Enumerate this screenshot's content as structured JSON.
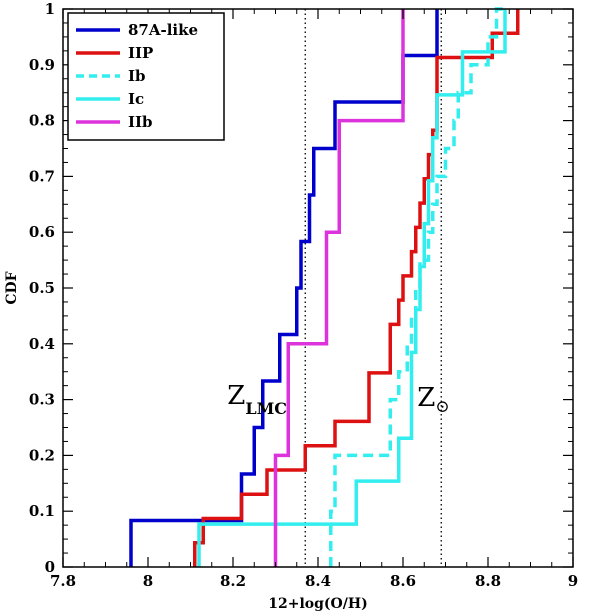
{
  "chart_data": {
    "type": "line",
    "subtype": "step-cdf",
    "xlabel": "12+log(O/H)",
    "ylabel": "CDF",
    "xlim": [
      7.8,
      9.0
    ],
    "ylim": [
      0,
      1
    ],
    "x_ticks": [
      7.8,
      8.0,
      8.2,
      8.4,
      8.6,
      8.8,
      9.0
    ],
    "x_tick_labels": [
      "7.8",
      "8",
      "8.2",
      "8.4",
      "8.6",
      "8.8",
      "9"
    ],
    "y_ticks": [
      0,
      0.1,
      0.2,
      0.3,
      0.4,
      0.5,
      0.6,
      0.7,
      0.8,
      0.9,
      1
    ],
    "y_tick_labels": [
      "0",
      "0.1",
      "0.2",
      "0.3",
      "0.4",
      "0.5",
      "0.6",
      "0.7",
      "0.8",
      "0.9",
      "1"
    ],
    "grid": false,
    "legend_position": "top-left",
    "series": [
      {
        "name": "87A-like",
        "color": "#0000cc",
        "dash": "solid",
        "x": [
          7.96,
          8.22,
          8.25,
          8.27,
          8.31,
          8.35,
          8.36,
          8.38,
          8.39,
          8.44,
          8.6,
          8.68
        ],
        "y": [
          0.0833,
          0.1667,
          0.25,
          0.3333,
          0.4167,
          0.5,
          0.5833,
          0.6667,
          0.75,
          0.8333,
          0.9167,
          1.0
        ]
      },
      {
        "name": "IIP",
        "color": "#dd1111",
        "dash": "solid",
        "x": [
          8.11,
          8.13,
          8.14,
          8.22,
          8.28,
          8.37,
          8.44,
          8.52,
          8.57,
          8.59,
          8.6,
          8.62,
          8.63,
          8.64,
          8.65,
          8.66,
          8.67,
          8.68,
          8.81,
          8.86,
          8.87
        ],
        "y": [
          0.0435,
          0.087,
          0.087,
          0.1304,
          0.1739,
          0.2174,
          0.2609,
          0.3478,
          0.4348,
          0.4783,
          0.5217,
          0.5652,
          0.6087,
          0.6522,
          0.6957,
          0.7391,
          0.7826,
          0.913,
          0.9565,
          0.9565,
          1.0
        ]
      },
      {
        "name": "Ib",
        "color": "#33eeee",
        "dash": "dashed",
        "x": [
          8.43,
          8.44,
          8.57,
          8.59,
          8.61,
          8.62,
          8.63,
          8.64,
          8.66,
          8.67,
          8.68,
          8.7,
          8.72,
          8.73,
          8.76,
          8.78,
          8.8,
          8.82,
          8.84
        ],
        "y": [
          0.1,
          0.2,
          0.3,
          0.35,
          0.4,
          0.45,
          0.5,
          0.55,
          0.6,
          0.65,
          0.7,
          0.75,
          0.8,
          0.85,
          0.9,
          0.9,
          0.95,
          1.0,
          1.0
        ]
      },
      {
        "name": "Ic",
        "color": "#33eeee",
        "dash": "solid",
        "x": [
          8.12,
          8.49,
          8.59,
          8.62,
          8.63,
          8.64,
          8.65,
          8.66,
          8.67,
          8.68,
          8.74,
          8.8,
          8.84
        ],
        "y": [
          0.0769,
          0.1538,
          0.2308,
          0.3846,
          0.4615,
          0.5385,
          0.6154,
          0.6923,
          0.7692,
          0.8462,
          0.9231,
          0.9231,
          1.0
        ]
      },
      {
        "name": "IIb",
        "color": "#dd33dd",
        "dash": "solid",
        "x": [
          8.3,
          8.33,
          8.42,
          8.45,
          8.6
        ],
        "y": [
          0.2,
          0.4,
          0.6,
          0.8,
          1.0
        ]
      }
    ],
    "reference_lines": [
      {
        "label_main": "Z",
        "label_sub": "LMC",
        "x": 8.37
      },
      {
        "label_main": "Z",
        "label_sub": "⊙",
        "x": 8.69
      }
    ]
  }
}
